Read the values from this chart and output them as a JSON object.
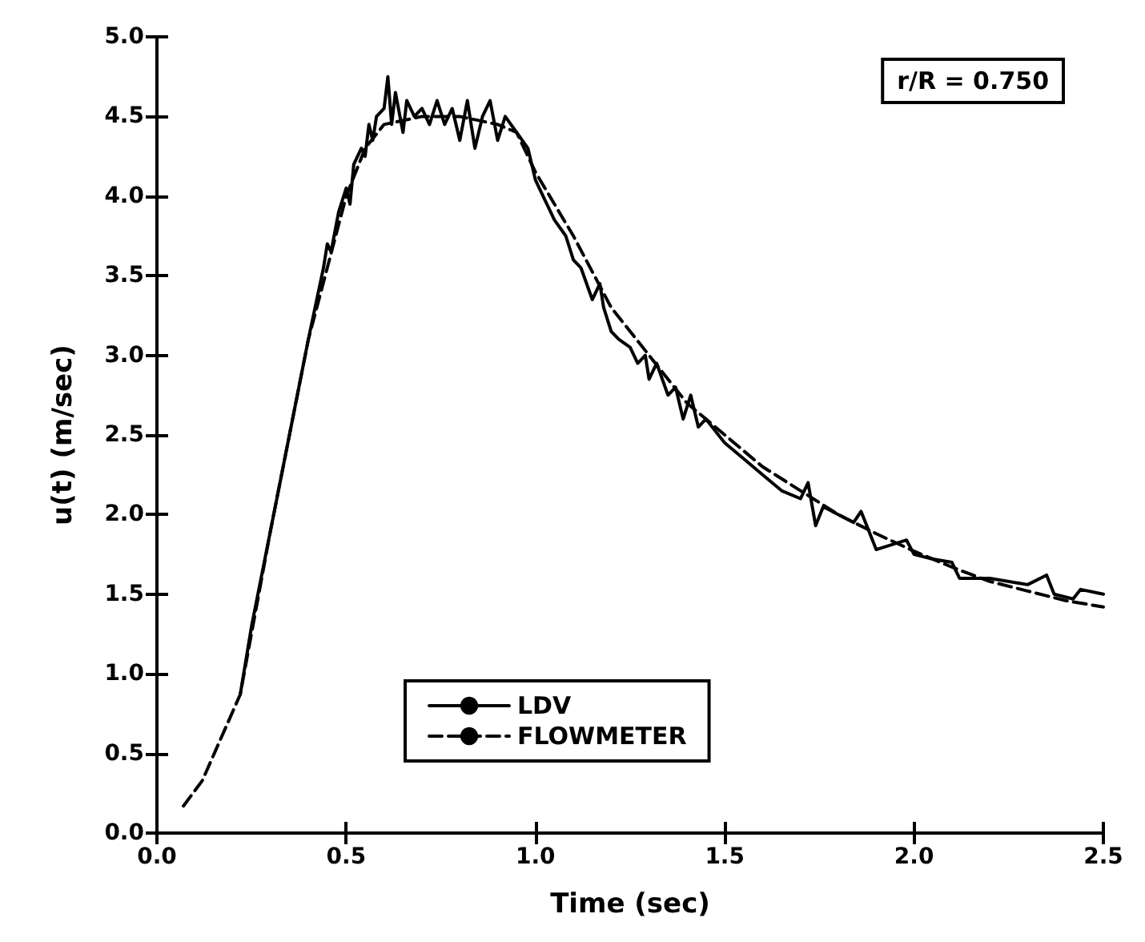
{
  "chart_data": {
    "type": "line",
    "xlabel": "Time (sec)",
    "ylabel": "u(t) (m/sec)",
    "xlim": [
      0,
      2.5
    ],
    "ylim": [
      0,
      5
    ],
    "xticks": [
      {
        "value": 0,
        "label": "0.0"
      },
      0.5,
      {
        "value": 1,
        "label": "1.0"
      },
      1.5,
      {
        "value": 2,
        "label": "2.0"
      },
      2.5
    ],
    "yticks": [
      {
        "value": 0,
        "label": "0.0"
      },
      0.5,
      {
        "value": 1,
        "label": "1.0"
      },
      1.5,
      {
        "value": 2,
        "label": "2.0"
      },
      2.5,
      {
        "value": 3,
        "label": "3.0"
      },
      3.5,
      {
        "value": 4,
        "label": "4.0"
      },
      4.5,
      {
        "value": 5,
        "label": "5.0"
      }
    ],
    "grid": false,
    "legend": "bottom",
    "marker": "none",
    "annotations": [
      "r/R = 0.750"
    ],
    "series": [
      {
        "name": "LDV",
        "color": "#000000",
        "line_style": "solid",
        "x": [
          0.22,
          0.25,
          0.3,
          0.35,
          0.4,
          0.44,
          0.45,
          0.46,
          0.48,
          0.5,
          0.51,
          0.52,
          0.54,
          0.55,
          0.56,
          0.57,
          0.58,
          0.6,
          0.61,
          0.62,
          0.63,
          0.65,
          0.66,
          0.68,
          0.7,
          0.72,
          0.74,
          0.76,
          0.78,
          0.8,
          0.82,
          0.84,
          0.86,
          0.88,
          0.9,
          0.92,
          0.95,
          0.98,
          1.0,
          1.02,
          1.05,
          1.08,
          1.1,
          1.12,
          1.15,
          1.17,
          1.18,
          1.2,
          1.22,
          1.25,
          1.27,
          1.29,
          1.3,
          1.32,
          1.35,
          1.37,
          1.39,
          1.41,
          1.43,
          1.45,
          1.5,
          1.55,
          1.6,
          1.65,
          1.7,
          1.72,
          1.74,
          1.76,
          1.8,
          1.84,
          1.86,
          1.88,
          1.9,
          1.98,
          2.0,
          2.05,
          2.1,
          2.12,
          2.2,
          2.3,
          2.35,
          2.37,
          2.42,
          2.44,
          2.5
        ],
        "values": [
          0.87,
          1.3,
          1.9,
          2.5,
          3.1,
          3.55,
          3.7,
          3.65,
          3.9,
          4.05,
          3.95,
          4.2,
          4.3,
          4.25,
          4.45,
          4.35,
          4.5,
          4.55,
          4.75,
          4.45,
          4.65,
          4.4,
          4.6,
          4.5,
          4.55,
          4.45,
          4.6,
          4.45,
          4.55,
          4.35,
          4.6,
          4.3,
          4.5,
          4.6,
          4.35,
          4.5,
          4.4,
          4.3,
          4.1,
          4.0,
          3.85,
          3.75,
          3.6,
          3.55,
          3.35,
          3.45,
          3.3,
          3.15,
          3.1,
          3.05,
          2.95,
          3.0,
          2.85,
          2.95,
          2.75,
          2.8,
          2.6,
          2.75,
          2.55,
          2.6,
          2.45,
          2.35,
          2.25,
          2.15,
          2.1,
          2.2,
          1.93,
          2.05,
          2.0,
          1.95,
          2.02,
          1.9,
          1.78,
          1.84,
          1.75,
          1.72,
          1.7,
          1.6,
          1.6,
          1.56,
          1.62,
          1.5,
          1.47,
          1.53,
          1.5
        ]
      },
      {
        "name": "FLOWMETER",
        "color": "#000000",
        "line_style": "dashed",
        "x": [
          0.07,
          0.12,
          0.17,
          0.22,
          0.3,
          0.4,
          0.5,
          0.55,
          0.6,
          0.7,
          0.8,
          0.9,
          0.95,
          1.0,
          1.1,
          1.2,
          1.3,
          1.4,
          1.5,
          1.6,
          1.7,
          1.8,
          1.9,
          2.0,
          2.1,
          2.2,
          2.3,
          2.4,
          2.5
        ],
        "values": [
          0.17,
          0.33,
          0.6,
          0.87,
          1.9,
          3.1,
          4.0,
          4.3,
          4.45,
          4.5,
          4.5,
          4.45,
          4.4,
          4.15,
          3.75,
          3.3,
          3.0,
          2.7,
          2.5,
          2.3,
          2.15,
          2.0,
          1.88,
          1.77,
          1.67,
          1.58,
          1.52,
          1.46,
          1.42
        ]
      }
    ]
  }
}
